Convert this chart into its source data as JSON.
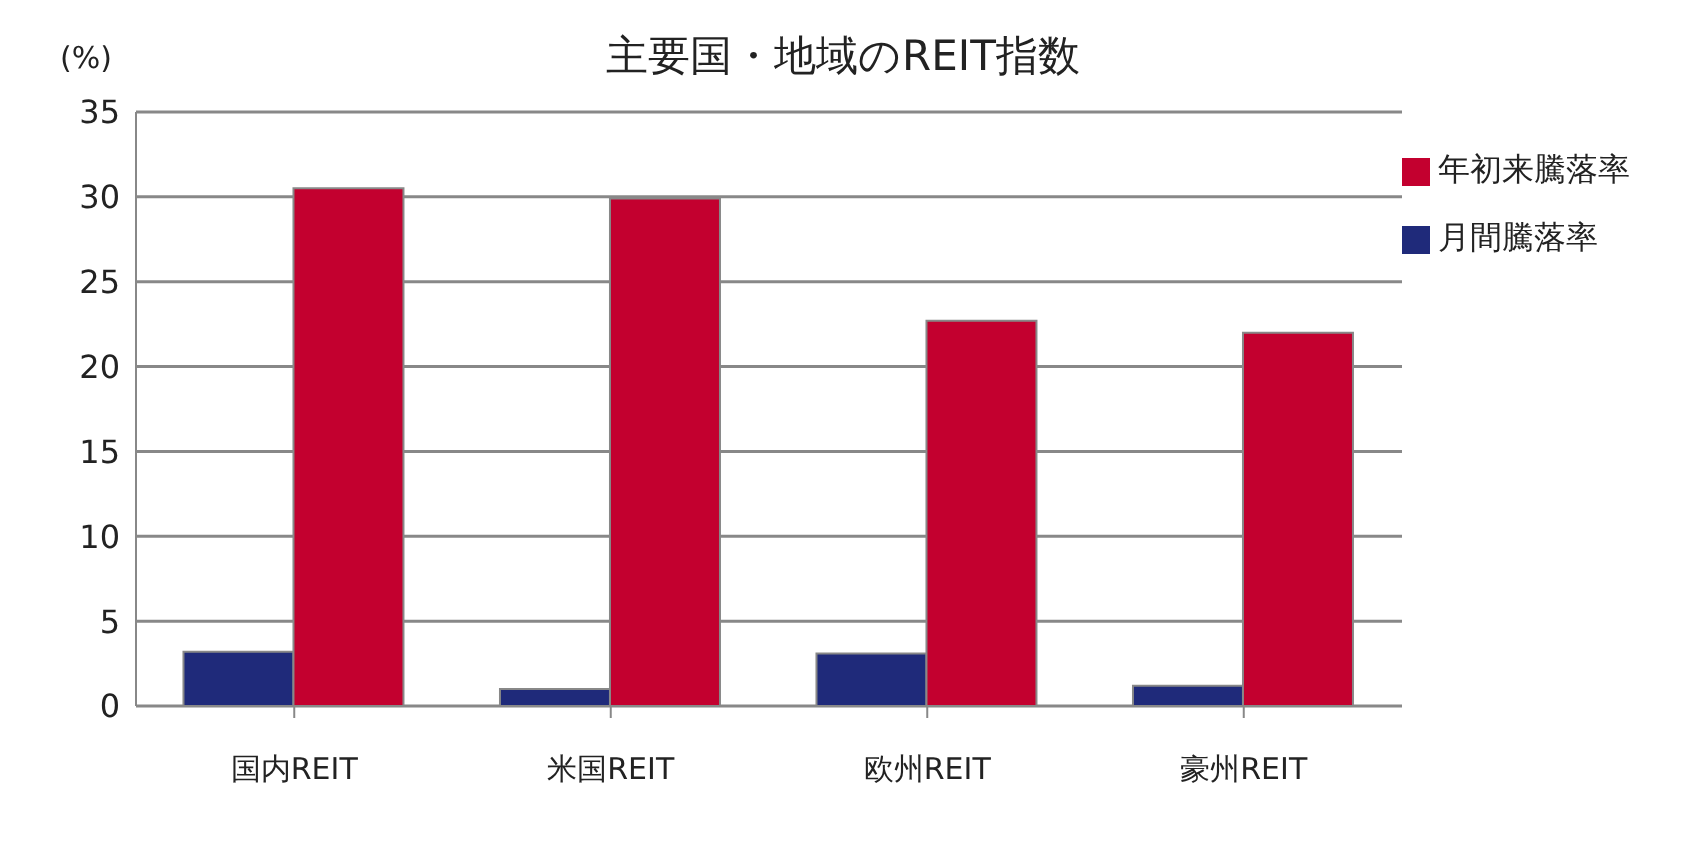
{
  "chart_data": {
    "type": "bar",
    "title": "主要国・地域のREIT指数",
    "ylabel": "(%)",
    "categories": [
      "国内REIT",
      "米国REIT",
      "欧州REIT",
      "豪州REIT"
    ],
    "series": [
      {
        "name": "月間騰落率",
        "color": "#1f2a7a",
        "values": [
          3.2,
          1.0,
          3.1,
          1.2
        ]
      },
      {
        "name": "年初来騰落率",
        "color": "#c3002f",
        "values": [
          30.5,
          29.9,
          22.7,
          22.0
        ]
      }
    ],
    "ylim": [
      0,
      35
    ],
    "yticks": [
      0,
      5,
      10,
      15,
      20,
      25,
      30,
      35
    ],
    "grid": "y",
    "legend": "top right"
  }
}
